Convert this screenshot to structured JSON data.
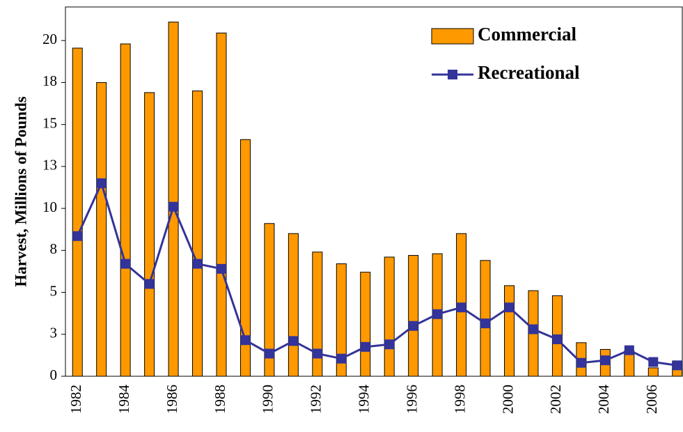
{
  "chart_data": {
    "type": "bar",
    "y_label": "Harvest, Millions of Pounds",
    "categories": [
      "1982",
      null,
      "1984",
      null,
      "1986",
      null,
      "1988",
      null,
      "1990",
      null,
      "1992",
      null,
      "1994",
      null,
      "1996",
      null,
      "1998",
      null,
      "2000",
      null,
      "2002",
      null,
      "2004",
      null,
      "2006",
      null
    ],
    "series": [
      {
        "name": "Commercial",
        "type": "bar",
        "color": "#ff9900",
        "values": [
          19.55,
          17.5,
          19.8,
          16.9,
          21.1,
          17.0,
          20.45,
          14.1,
          9.1,
          8.5,
          7.4,
          6.7,
          6.2,
          7.1,
          7.2,
          7.3,
          8.5,
          6.9,
          5.4,
          5.1,
          4.8,
          2.0,
          1.6,
          1.5,
          0.5,
          0.9
        ]
      },
      {
        "name": "Recreational",
        "type": "line",
        "color": "#333399",
        "values": [
          8.35,
          11.5,
          6.7,
          5.5,
          10.1,
          6.7,
          6.4,
          2.15,
          1.35,
          2.1,
          1.35,
          1.05,
          1.75,
          1.9,
          3.0,
          3.7,
          4.1,
          3.15,
          4.1,
          2.8,
          2.2,
          0.8,
          0.95,
          1.55,
          0.85,
          0.65
        ]
      }
    ],
    "ylim": [
      0,
      22
    ],
    "yticks": [
      0,
      {
        "value": 2.5,
        "label": "3"
      },
      5,
      {
        "value": 7.5,
        "label": "8"
      },
      10,
      {
        "value": 12.5,
        "label": "13"
      },
      15,
      {
        "value": 17.5,
        "label": "18"
      },
      20
    ],
    "legend": "top-right",
    "grid": false
  }
}
